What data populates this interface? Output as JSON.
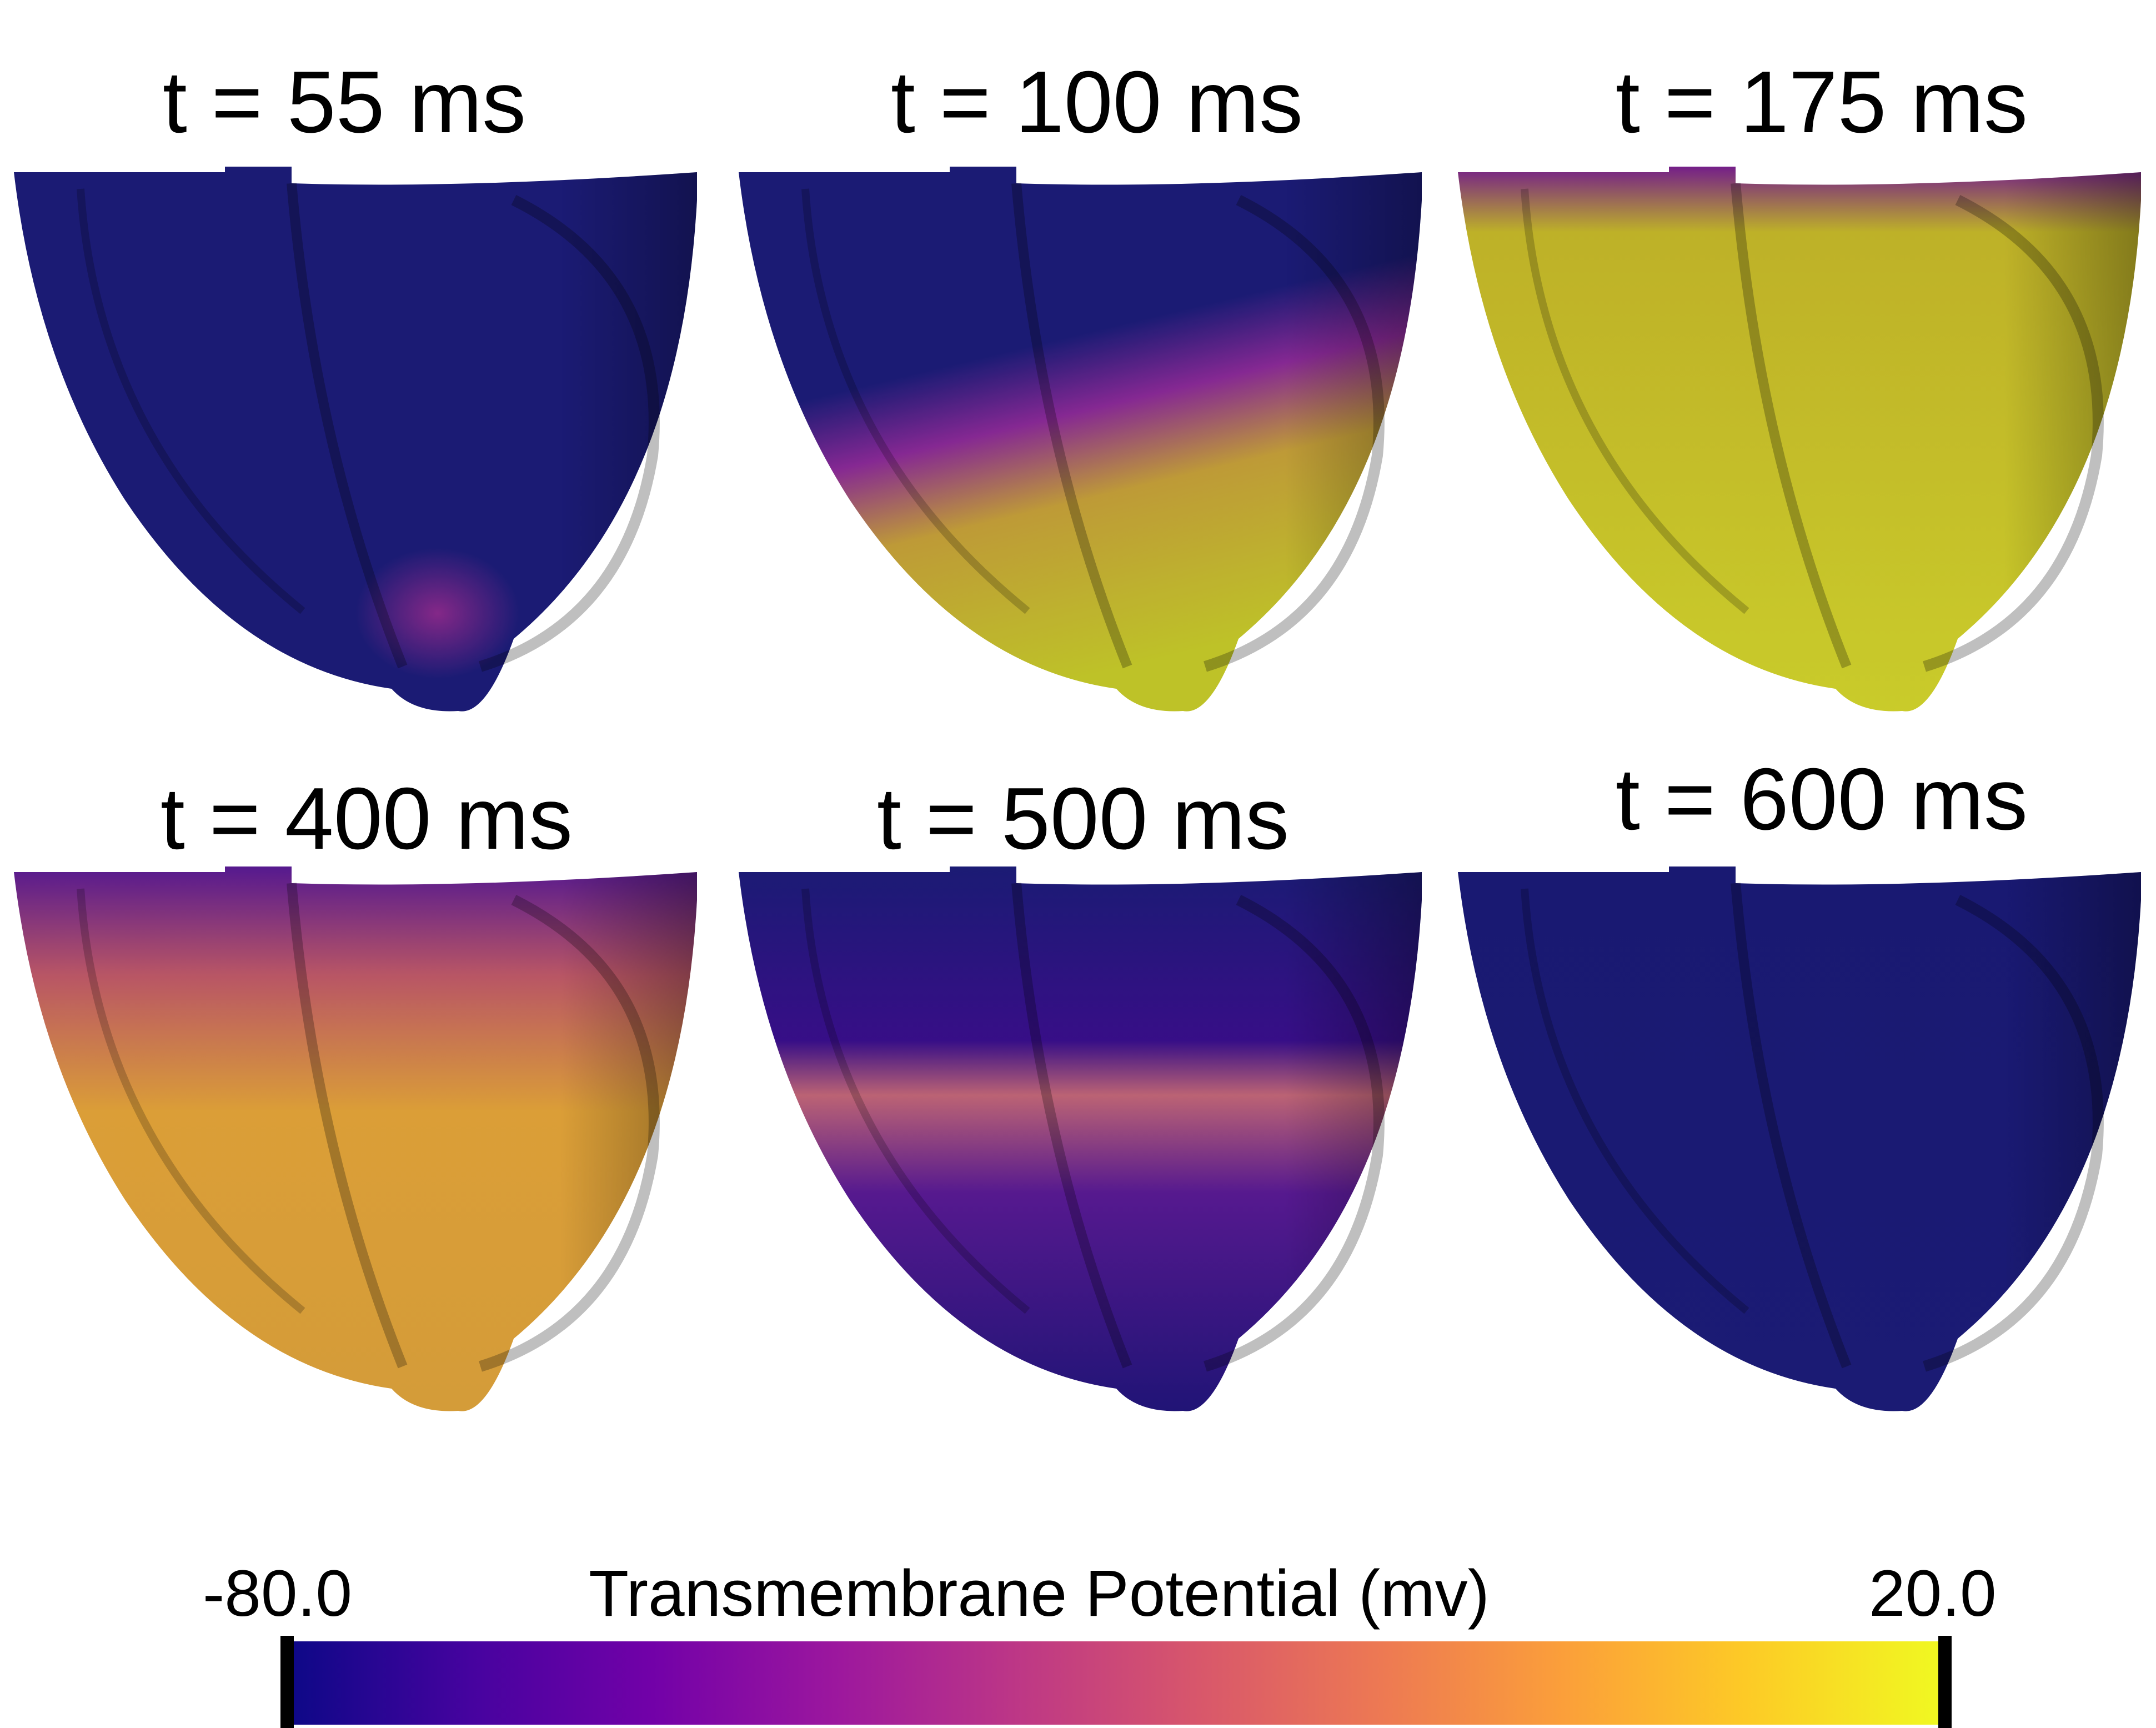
{
  "panels": [
    {
      "title": "t = 55 ms",
      "state": "early-activation"
    },
    {
      "title": "t = 100 ms",
      "state": "spreading-activation"
    },
    {
      "title": "t = 175 ms",
      "state": "near-full-activation"
    },
    {
      "title": "t = 400 ms",
      "state": "plateau-repolarizing"
    },
    {
      "title": "t = 500 ms",
      "state": "late-repolarization"
    },
    {
      "title": "t = 600 ms",
      "state": "resting"
    }
  ],
  "colorbar": {
    "label": "Transmembrane Potential (mv)",
    "min_label": "-80.0",
    "max_label": "20.0",
    "min": -80.0,
    "max": 20.0,
    "colormap": [
      "#0d0887",
      "#46039f",
      "#7201a8",
      "#9c179e",
      "#bd3786",
      "#d8576b",
      "#ed7953",
      "#fb9f3a",
      "#fdca26",
      "#f0f921"
    ]
  },
  "colors": {
    "resting": "#1c1c7a",
    "activated": "#c8cc2a",
    "plateau": "#e6a63a"
  }
}
